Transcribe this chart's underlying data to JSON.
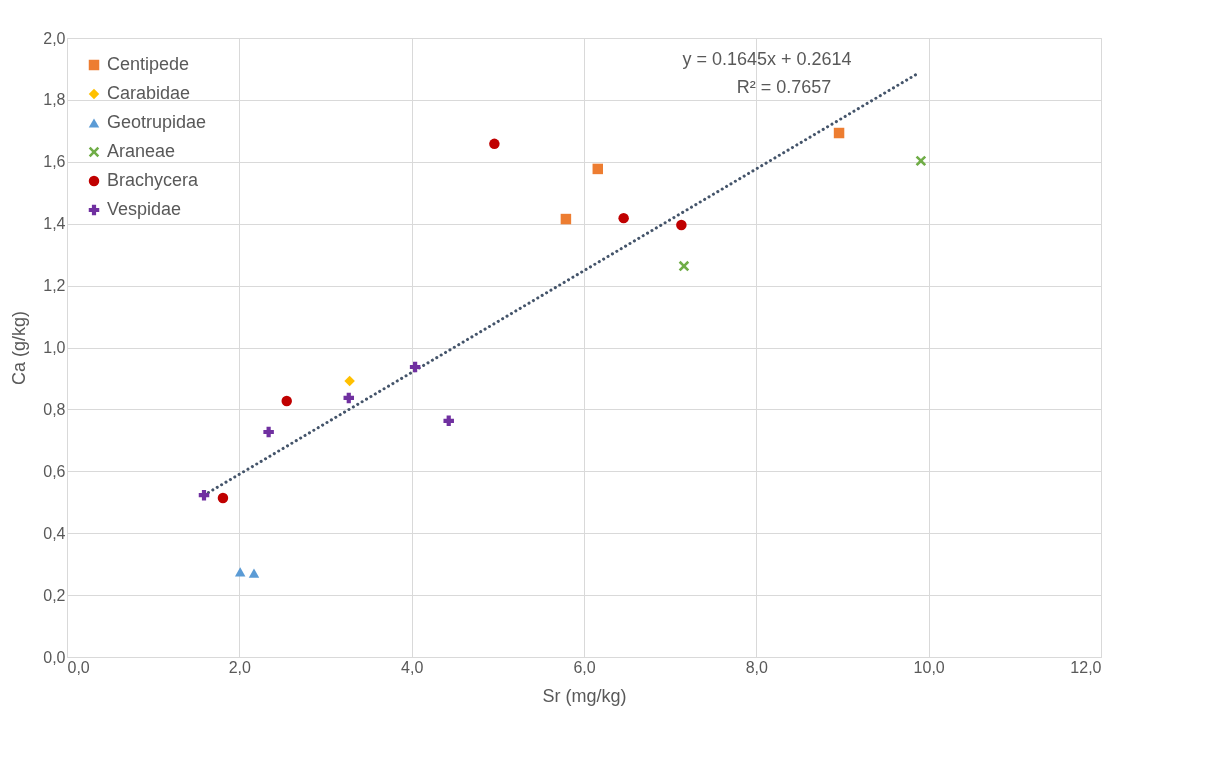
{
  "chart_data": {
    "type": "scatter",
    "xlabel": "Sr (mg/kg)",
    "ylabel": "Ca (g/kg)",
    "series": [
      {
        "name": "Centipede",
        "color": "#ed7d31",
        "marker": "square",
        "x": [
          5.79,
          6.16,
          8.96
        ],
        "values": [
          1.415,
          1.577,
          1.693
        ]
      },
      {
        "name": "Carabidae",
        "color": "#ffc000",
        "marker": "diamond",
        "x": [
          3.28
        ],
        "values": [
          0.892
        ]
      },
      {
        "name": "Geotrupidae",
        "color": "#5b9bd5",
        "marker": "triangle",
        "x": [
          2.01,
          2.17
        ],
        "values": [
          0.275,
          0.271
        ]
      },
      {
        "name": "Araneae",
        "color": "#70ad47",
        "marker": "cross",
        "x": [
          7.16,
          9.91
        ],
        "values": [
          1.263,
          1.603
        ]
      },
      {
        "name": "Brachycera",
        "color": "#c00000",
        "marker": "circle",
        "x": [
          4.96,
          6.46,
          7.13,
          2.55,
          1.81
        ],
        "values": [
          1.658,
          1.418,
          1.396,
          0.827,
          0.514
        ]
      },
      {
        "name": "Vespidae",
        "color": "#7030a0",
        "marker": "plus",
        "x": [
          1.59,
          2.34,
          3.27,
          4.04,
          4.43
        ],
        "values": [
          0.523,
          0.727,
          0.837,
          0.937,
          0.763
        ]
      },
      {
        "type": "line",
        "color": "#44546a",
        "line_style": "dotted",
        "x": [
          1.59,
          9.89
        ],
        "values": [
          0.523,
          1.888
        ]
      }
    ],
    "annotations": [
      "y = 0.1645x + 0.2614",
      "R² = 0.7657"
    ],
    "xlim": [
      0,
      12
    ],
    "ylim": [
      0,
      2
    ],
    "xticks": [
      {
        "value": 0,
        "label": "0,0"
      },
      {
        "value": 2,
        "label": "2,0"
      },
      {
        "value": 4,
        "label": "4,0"
      },
      {
        "value": 6,
        "label": "6,0"
      },
      {
        "value": 8,
        "label": "8,0"
      },
      {
        "value": 10,
        "label": "10,0"
      },
      {
        "value": 12,
        "label": "12,0"
      }
    ],
    "yticks": [
      {
        "value": 0,
        "label": "0,0"
      },
      {
        "value": 0.2,
        "label": "0,2"
      },
      {
        "value": 0.4,
        "label": "0,4"
      },
      {
        "value": 0.6,
        "label": "0,6"
      },
      {
        "value": 0.8,
        "label": "0,8"
      },
      {
        "value": 1.0,
        "label": "1,0"
      },
      {
        "value": 1.2,
        "label": "1,2"
      },
      {
        "value": 1.4,
        "label": "1,4"
      },
      {
        "value": 1.6,
        "label": "1,6"
      },
      {
        "value": 1.8,
        "label": "1,8"
      },
      {
        "value": 2.0,
        "label": "2,0"
      }
    ],
    "grid": true,
    "legend": "top left"
  }
}
